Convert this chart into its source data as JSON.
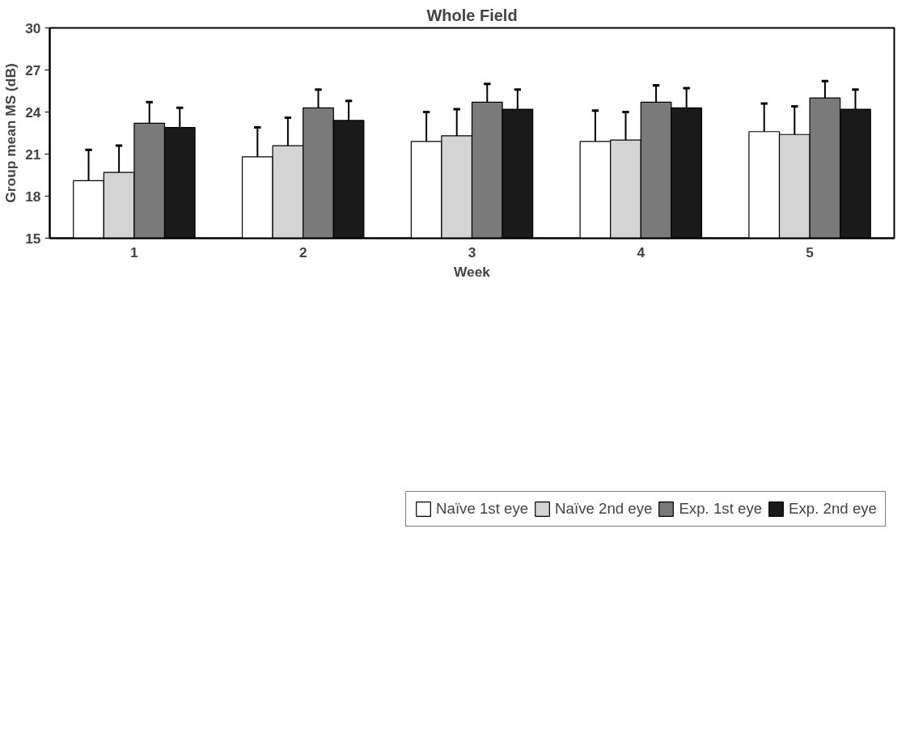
{
  "chart_data": {
    "type": "bar",
    "title": "Whole Field",
    "xlabel": "Week",
    "ylabel": "Group mean MS (dB)",
    "categories": [
      "1",
      "2",
      "3",
      "4",
      "5"
    ],
    "series": [
      {
        "name": "Naïve 1st eye",
        "color": "#ffffff",
        "values": [
          19.1,
          20.8,
          21.9,
          21.9,
          22.6
        ],
        "errors": [
          [
            19.1,
            21.3
          ],
          [
            20.8,
            22.9
          ],
          [
            21.9,
            24.0
          ],
          [
            21.9,
            24.1
          ],
          [
            22.6,
            24.6
          ]
        ]
      },
      {
        "name": "Naïve 2nd eye",
        "color": "#d4d4d4",
        "values": [
          19.7,
          21.6,
          22.3,
          22.0,
          22.4
        ],
        "errors": [
          [
            19.7,
            21.6
          ],
          [
            21.6,
            23.6
          ],
          [
            22.3,
            24.2
          ],
          [
            22.0,
            24.0
          ],
          [
            22.4,
            24.4
          ]
        ]
      },
      {
        "name": "Exp. 1st eye",
        "color": "#7a7a7a",
        "values": [
          23.2,
          24.3,
          24.7,
          24.7,
          25.0
        ],
        "errors": [
          [
            23.2,
            24.7
          ],
          [
            24.3,
            25.6
          ],
          [
            24.7,
            26.0
          ],
          [
            24.7,
            25.9
          ],
          [
            25.0,
            26.2
          ]
        ]
      },
      {
        "name": "Exp. 2nd eye",
        "color": "#1a1a1a",
        "values": [
          22.9,
          23.4,
          24.2,
          24.3,
          24.2
        ],
        "errors": [
          [
            22.9,
            24.3
          ],
          [
            23.4,
            24.8
          ],
          [
            24.2,
            25.6
          ],
          [
            24.3,
            25.7
          ],
          [
            24.2,
            25.6
          ]
        ]
      }
    ],
    "ylim": [
      15,
      30
    ],
    "yticks": [
      15,
      18,
      21,
      24,
      27,
      30
    ],
    "grid": false,
    "legend": "bottom"
  }
}
